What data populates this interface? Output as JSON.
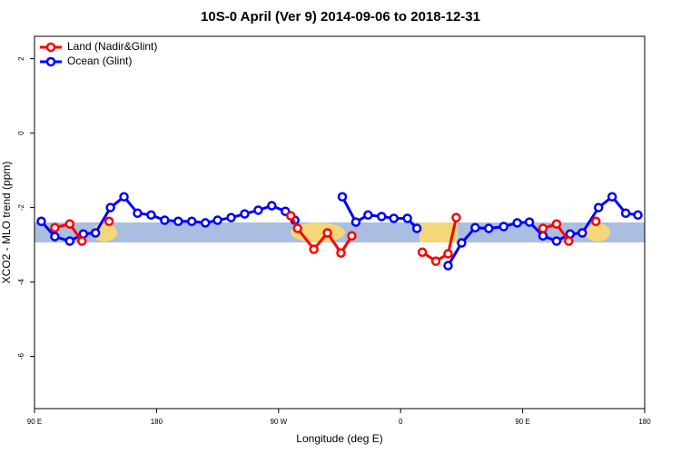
{
  "chart_data": {
    "type": "line",
    "title": "10S-0 April (Ver 9)   2014-09-06 to 2018-12-31",
    "x_label": "Longitude (deg E)",
    "y_label": "XCO2 - MLO trend (ppm)",
    "xlim": [
      90,
      540
    ],
    "ylim": [
      -7.4,
      2.6
    ],
    "xticks": [
      {
        "value": 90,
        "label": "90 E"
      },
      180,
      {
        "value": 270,
        "label": "90 W"
      },
      {
        "value": 360,
        "label": "0"
      },
      {
        "value": 450,
        "label": "90 E"
      },
      {
        "value": 540,
        "label": "180"
      }
    ],
    "yticks": [
      2,
      0,
      -2,
      -4,
      -6
    ],
    "legend": "top-left",
    "series": [
      {
        "name": "Ocean (Glint)",
        "color": "#0000ff",
        "x": [
          95,
          105,
          116,
          126,
          135,
          146,
          156,
          166,
          176,
          186,
          196,
          206,
          216,
          225,
          235,
          245,
          255,
          265,
          275,
          282,
          null,
          317,
          327,
          336,
          346,
          355,
          365,
          372,
          null,
          395,
          405,
          415,
          425,
          436,
          446,
          455,
          465,
          475,
          485,
          494,
          506,
          516,
          526,
          535
        ],
        "values": [
          -2.37,
          -2.78,
          -2.9,
          -2.71,
          -2.68,
          -2.0,
          -1.71,
          -2.15,
          -2.2,
          -2.34,
          -2.37,
          -2.37,
          -2.41,
          -2.34,
          -2.27,
          -2.17,
          -2.07,
          -1.95,
          -2.1,
          -2.34,
          null,
          -1.71,
          -2.39,
          -2.2,
          -2.24,
          -2.29,
          -2.29,
          -2.56,
          null,
          -3.56,
          -2.95,
          -2.54,
          -2.56,
          -2.51,
          -2.41,
          -2.39,
          -2.76,
          -2.9,
          -2.71,
          -2.68,
          -2.0,
          -1.71,
          -2.15,
          -2.2
        ]
      },
      {
        "name": "Land (Nadir&Glint)",
        "color": "#ff0000",
        "x": [
          105,
          116,
          125,
          null,
          145,
          null,
          279,
          284,
          296,
          306,
          316,
          324,
          null,
          376,
          386,
          395,
          401,
          null,
          465,
          475,
          484,
          null,
          504
        ],
        "values": [
          -2.54,
          -2.44,
          -2.9,
          null,
          -2.37,
          null,
          -2.22,
          -2.56,
          -3.12,
          -2.68,
          -3.22,
          -2.76,
          null,
          -3.2,
          -3.44,
          -3.24,
          -2.27,
          null,
          -2.56,
          -2.44,
          -2.9,
          null,
          -2.37
        ]
      }
    ]
  }
}
